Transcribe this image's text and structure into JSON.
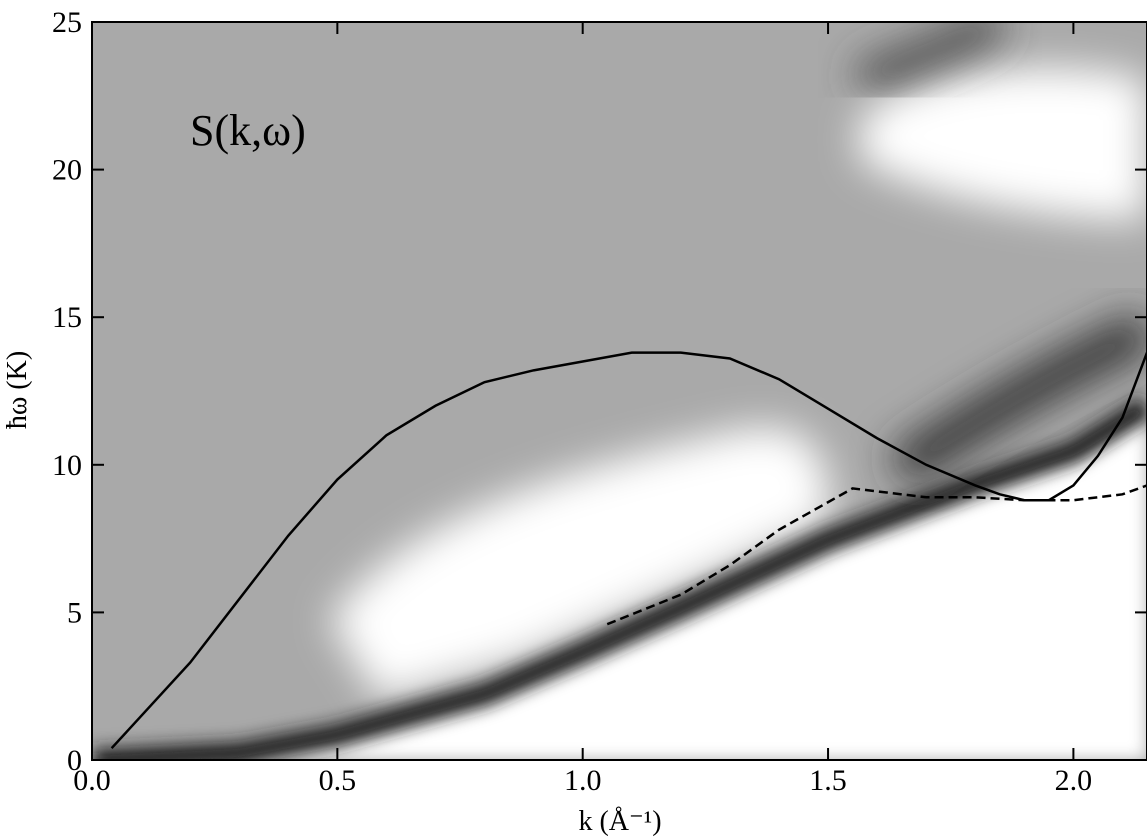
{
  "chart_data": {
    "type": "line",
    "annotation": "S(k,ω)",
    "x_label": "k  (Å⁻¹)",
    "y_label": "ħω  (K)",
    "xlim": [
      0,
      2.15
    ],
    "ylim": [
      0,
      25
    ],
    "xticks": [
      {
        "value": 0,
        "label": "0.0"
      },
      {
        "value": 0.5,
        "label": "0.5"
      },
      {
        "value": 1,
        "label": "1.0"
      },
      {
        "value": 1.5,
        "label": "1.5"
      },
      {
        "value": 2,
        "label": "2.0"
      }
    ],
    "yticks": [
      0,
      5,
      10,
      15,
      20,
      25
    ],
    "series": [
      {
        "color": "#000000",
        "style": "solid",
        "x": [
          0.04,
          0.2,
          0.4,
          0.5,
          0.6,
          0.7,
          0.8,
          0.9,
          1.0,
          1.1,
          1.2,
          1.3,
          1.4,
          1.5,
          1.6,
          1.7,
          1.8,
          1.85,
          1.9,
          1.95,
          2.0,
          2.05,
          2.1,
          2.15
        ],
        "values": [
          0.4,
          3.3,
          7.6,
          9.5,
          11.0,
          12.0,
          12.8,
          13.2,
          13.5,
          13.8,
          13.8,
          13.6,
          12.9,
          11.9,
          10.9,
          10.0,
          9.3,
          9.0,
          8.8,
          8.8,
          9.3,
          10.3,
          11.6,
          13.8
        ]
      },
      {
        "color": "#000000",
        "style": "dashed",
        "x": [
          1.05,
          1.2,
          1.3,
          1.4,
          1.55,
          1.6,
          1.7,
          1.8,
          1.9,
          2.0,
          2.1,
          2.15
        ],
        "values": [
          4.6,
          5.6,
          6.6,
          7.8,
          9.2,
          9.1,
          8.9,
          8.9,
          8.8,
          8.8,
          9.0,
          9.3
        ]
      }
    ]
  }
}
